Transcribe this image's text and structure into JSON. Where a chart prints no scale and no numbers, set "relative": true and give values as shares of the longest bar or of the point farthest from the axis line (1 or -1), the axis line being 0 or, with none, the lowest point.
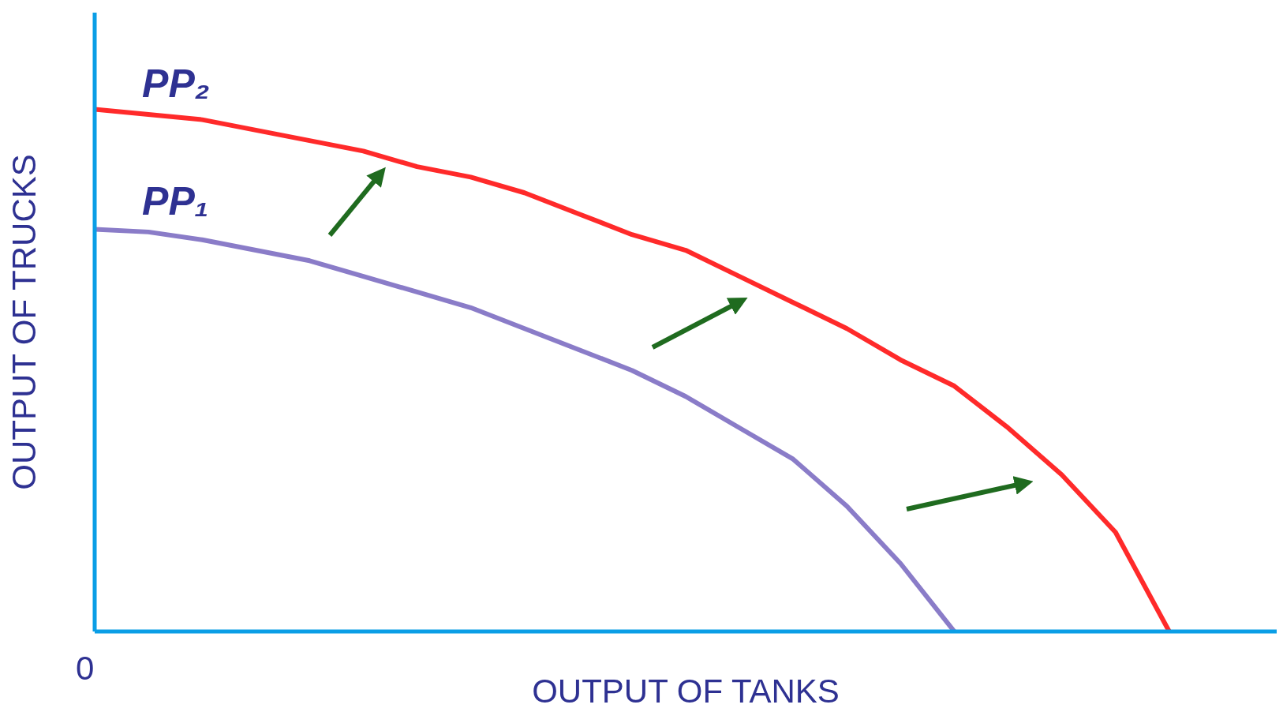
{
  "chart_data": {
    "type": "line",
    "relative": true,
    "xlabel": "OUTPUT OF TANKS",
    "ylabel": "OUTPUT OF TRUCKS",
    "annotations": [
      "0"
    ],
    "legend": false,
    "grid": false,
    "marker": "none",
    "line_style": "solid",
    "categories": [
      null,
      null,
      null,
      null,
      null,
      null,
      null,
      null,
      null,
      null,
      null,
      null,
      null,
      null,
      null,
      null,
      null,
      null,
      null,
      null,
      null,
      null,
      null
    ],
    "series": [
      {
        "name": "PP₁",
        "color": "#8a7cc8",
        "values": [
          0.77,
          0.765,
          0.75,
          0.73,
          0.71,
          0.68,
          0.65,
          0.62,
          0.58,
          0.54,
          0.5,
          0.45,
          0.39,
          0.33,
          0.24,
          0.13,
          0,
          null,
          null,
          null,
          null,
          null,
          null
        ]
      },
      {
        "name": "PP₂",
        "color": "#ff2a2a",
        "values": [
          1,
          0.99,
          0.98,
          0.96,
          0.94,
          0.92,
          0.89,
          0.87,
          0.84,
          0.8,
          0.76,
          0.73,
          0.68,
          0.63,
          0.58,
          0.52,
          0.47,
          0.39,
          0.3,
          0.19,
          0,
          null,
          null
        ]
      }
    ]
  }
}
